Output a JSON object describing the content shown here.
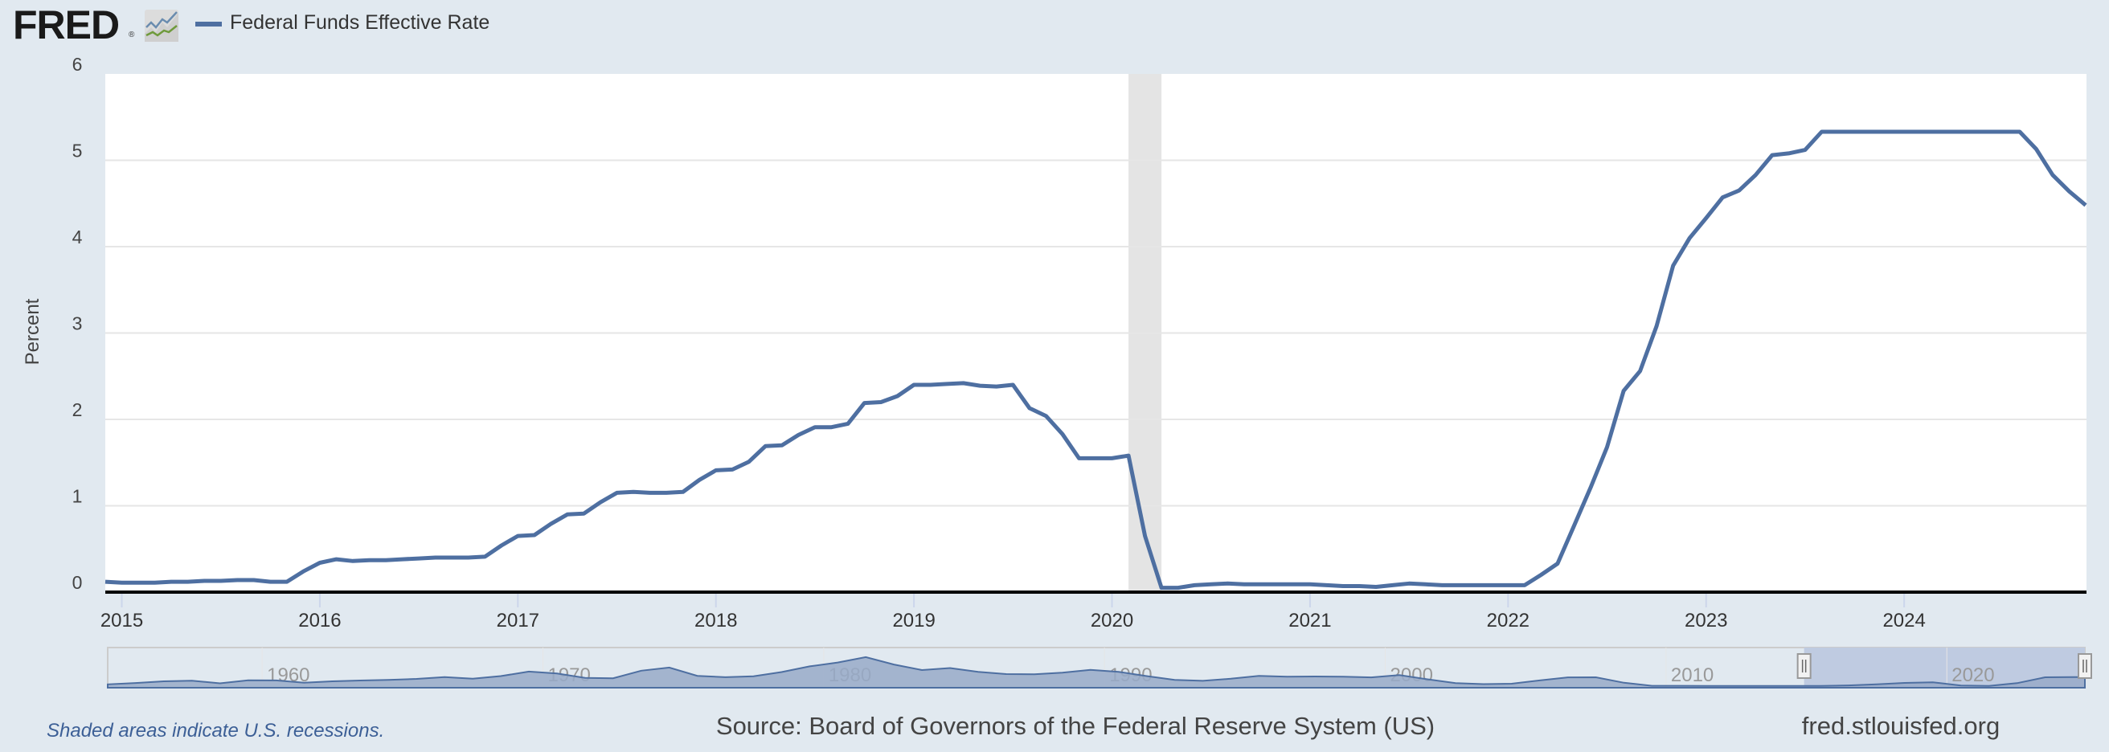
{
  "header": {
    "logo_text": "FRED",
    "logo_mark": "®",
    "legend_label": "Federal Funds Effective Rate"
  },
  "footer": {
    "recession_note": "Shaded areas indicate U.S. recessions.",
    "source": "Source: Board of Governors of the Federal Reserve System (US)",
    "site": "fred.stlouisfed.org"
  },
  "colors": {
    "series": "#4e6fa1",
    "background": "#e1e9f0",
    "recession": "#e4e4e4",
    "navigator_fill": "#98aac8",
    "navigator_selection": "#bfcbe1"
  },
  "chart_data": {
    "type": "line",
    "ylabel": "Percent",
    "xlabel": "",
    "ylim": [
      0,
      6
    ],
    "yticks": [
      "0",
      "1",
      "2",
      "3",
      "4",
      "5",
      "6"
    ],
    "xticks": [
      "2015",
      "2016",
      "2017",
      "2018",
      "2019",
      "2020",
      "2021",
      "2022",
      "2023",
      "2024"
    ],
    "grid": true,
    "legend": "top-left",
    "frequency": "monthly",
    "start": "2014-12",
    "end": "2024-12",
    "series": [
      {
        "name": "Federal Funds Effective Rate",
        "values": [
          0.12,
          0.11,
          0.11,
          0.11,
          0.12,
          0.12,
          0.13,
          0.13,
          0.14,
          0.14,
          0.12,
          0.12,
          0.24,
          0.34,
          0.38,
          0.36,
          0.37,
          0.37,
          0.38,
          0.39,
          0.4,
          0.4,
          0.4,
          0.41,
          0.54,
          0.65,
          0.66,
          0.79,
          0.9,
          0.91,
          1.04,
          1.15,
          1.16,
          1.15,
          1.15,
          1.16,
          1.3,
          1.41,
          1.42,
          1.51,
          1.69,
          1.7,
          1.82,
          1.91,
          1.91,
          1.95,
          2.19,
          2.2,
          2.27,
          2.4,
          2.4,
          2.41,
          2.42,
          2.39,
          2.38,
          2.4,
          2.13,
          2.04,
          1.83,
          1.55,
          1.55,
          1.55,
          1.58,
          0.65,
          0.05,
          0.05,
          0.08,
          0.09,
          0.1,
          0.09,
          0.09,
          0.09,
          0.09,
          0.09,
          0.08,
          0.07,
          0.07,
          0.06,
          0.08,
          0.1,
          0.09,
          0.08,
          0.08,
          0.08,
          0.08,
          0.08,
          0.08,
          0.2,
          0.33,
          0.77,
          1.21,
          1.68,
          2.33,
          2.56,
          3.08,
          3.78,
          4.1,
          4.33,
          4.57,
          4.65,
          4.83,
          5.06,
          5.08,
          5.12,
          5.33,
          5.33,
          5.33,
          5.33,
          5.33,
          5.33,
          5.33,
          5.33,
          5.33,
          5.33,
          5.33,
          5.33,
          5.33,
          5.13,
          4.83,
          4.64,
          4.48
        ]
      }
    ],
    "recessions": [
      {
        "start": "2020-02",
        "end": "2020-04"
      }
    ],
    "navigator": {
      "range": [
        "1954-07",
        "2024-12"
      ],
      "selected": [
        "2014-12",
        "2024-12"
      ],
      "labels": [
        "1960",
        "1970",
        "1980",
        "1990",
        "2000",
        "2010",
        "2020"
      ],
      "annual_start": 1954,
      "annual_values": [
        1.0,
        1.79,
        2.73,
        3.11,
        1.57,
        3.31,
        3.21,
        1.95,
        2.71,
        3.18,
        3.5,
        4.07,
        5.11,
        4.22,
        5.66,
        8.21,
        7.17,
        4.67,
        4.44,
        8.74,
        10.51,
        5.82,
        5.05,
        5.54,
        7.94,
        11.2,
        13.35,
        16.39,
        12.24,
        9.09,
        10.23,
        8.1,
        6.8,
        6.66,
        7.57,
        9.21,
        8.1,
        5.69,
        3.52,
        3.02,
        4.2,
        5.84,
        5.3,
        5.46,
        5.35,
        4.97,
        6.24,
        3.88,
        1.67,
        1.13,
        1.35,
        3.22,
        4.97,
        5.02,
        1.92,
        0.16,
        0.18,
        0.1,
        0.14,
        0.11,
        0.09,
        0.13,
        0.4,
        1.0,
        1.83,
        2.16,
        0.38,
        0.08,
        1.68,
        5.02,
        5.14
      ]
    }
  }
}
